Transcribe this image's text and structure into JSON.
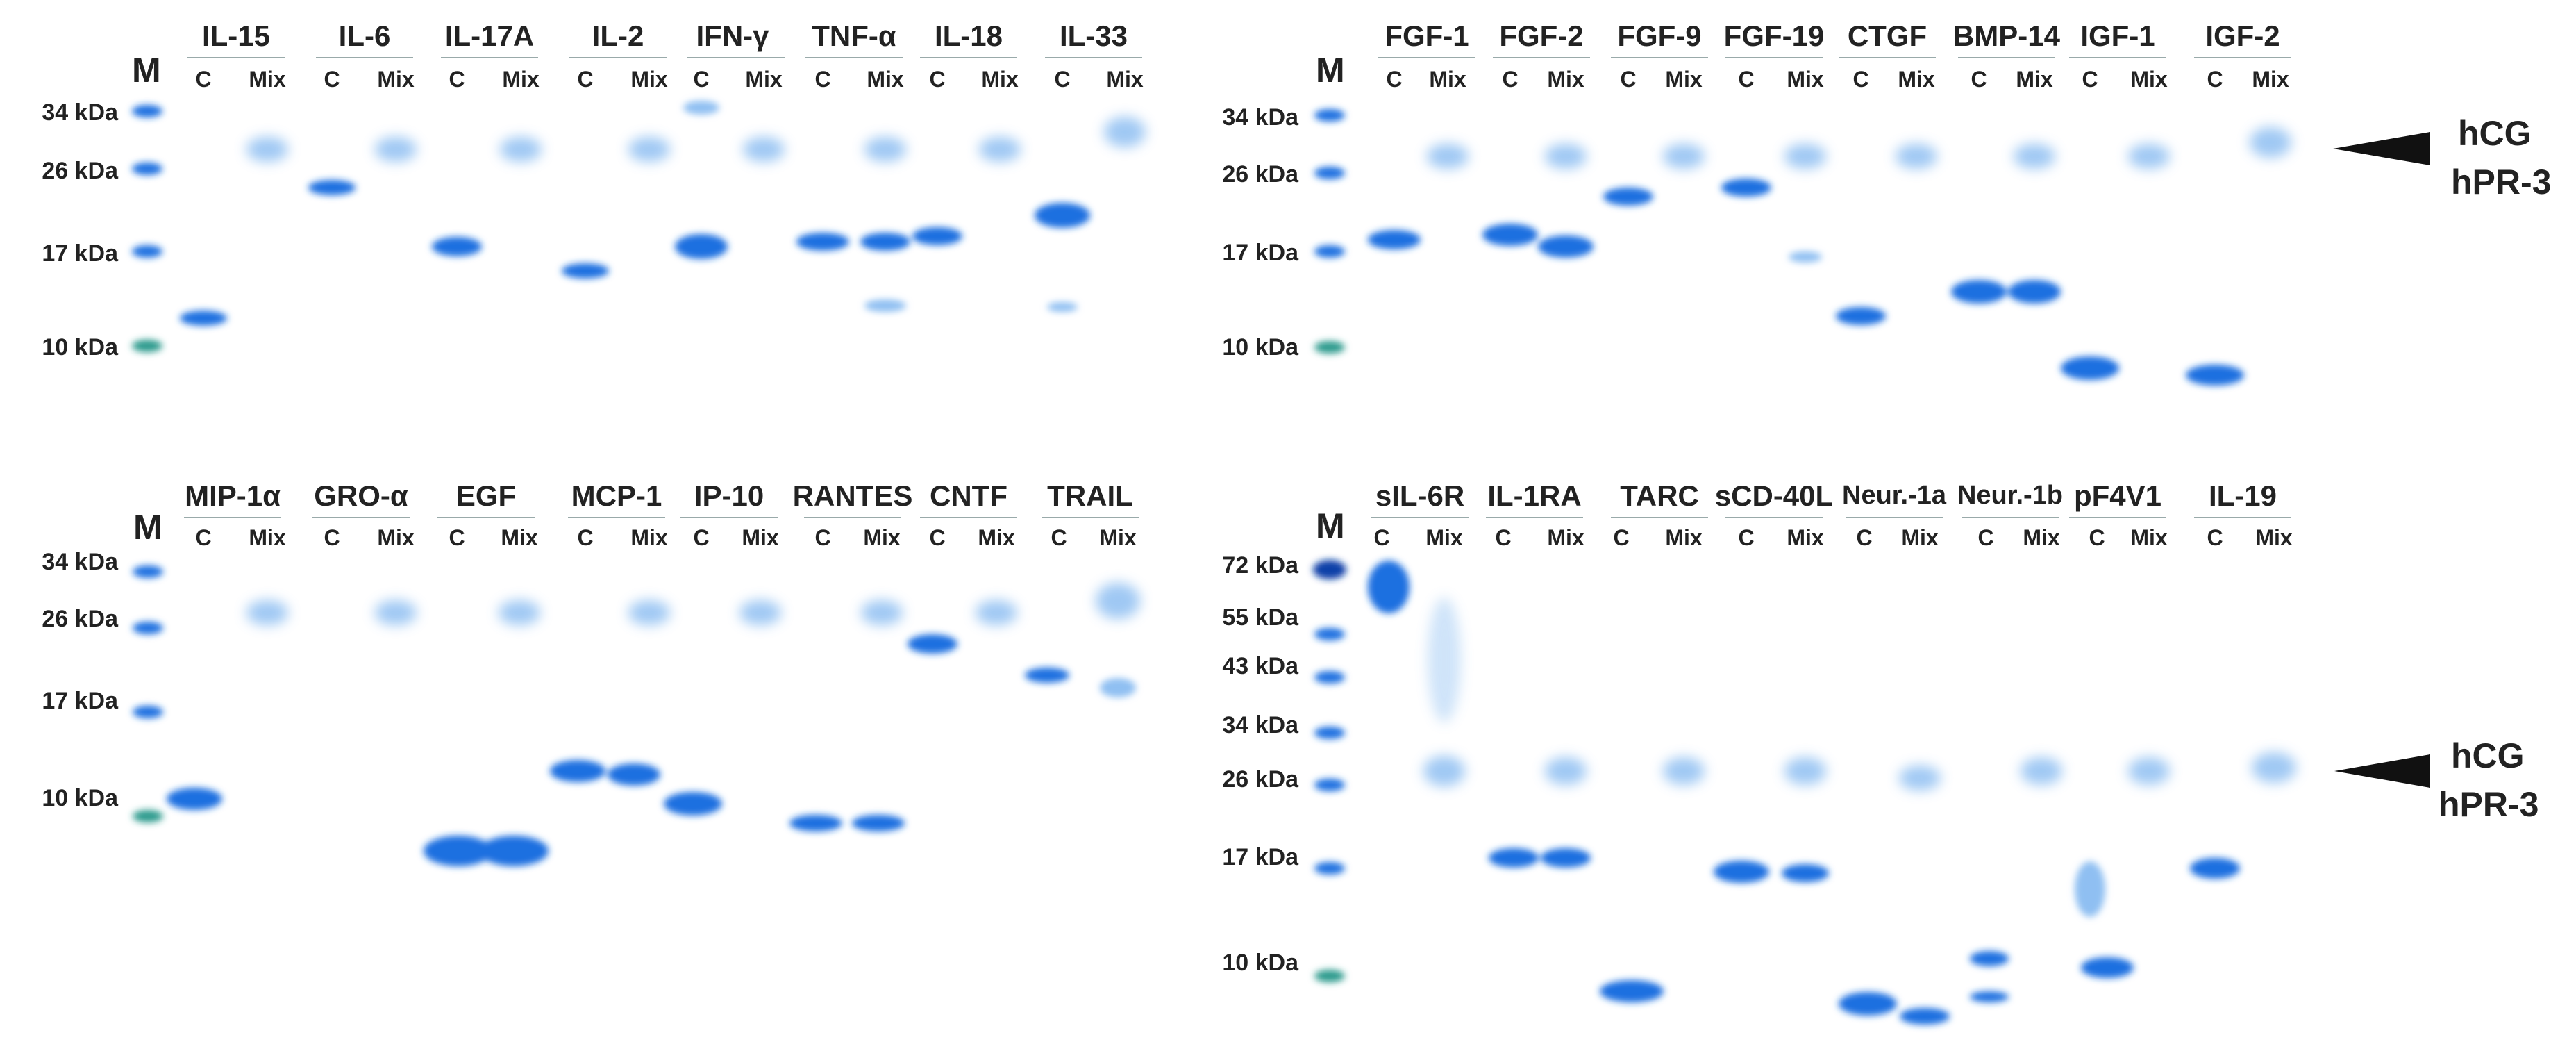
{
  "marker_label": "M",
  "lane_labels": [
    "C",
    "Mix"
  ],
  "arrow_labels": [
    "hCG",
    "hPR-3"
  ],
  "colors": {
    "band_dark": "#0a3fa8",
    "band_mid": "#1e6fe0",
    "band_faint": "#8fbff2",
    "marker_teal": "#2a9a8c",
    "arrow": "#111111"
  },
  "panels": [
    {
      "id": "top-left",
      "markers": [
        "34 kDa",
        "26 kDa",
        "17 kDa",
        "10 kDa"
      ],
      "proteins": [
        "IL-15",
        "IL-6",
        "IL-17A",
        "IL-2",
        "IFN-γ",
        "TNF-α",
        "IL-18",
        "IL-33"
      ]
    },
    {
      "id": "top-right",
      "markers": [
        "34 kDa",
        "26 kDa",
        "17 kDa",
        "10 kDa"
      ],
      "proteins": [
        "FGF-1",
        "FGF-2",
        "FGF-9",
        "FGF-19",
        "CTGF",
        "BMP-14",
        "IGF-1",
        "IGF-2"
      ]
    },
    {
      "id": "bottom-left",
      "markers": [
        "34 kDa",
        "26 kDa",
        "17 kDa",
        "10 kDa"
      ],
      "proteins": [
        "MIP-1α",
        "GRO-α",
        "EGF",
        "MCP-1",
        "IP-10",
        "RANTES",
        "CNTF",
        "TRAIL"
      ]
    },
    {
      "id": "bottom-right",
      "markers": [
        "72 kDa",
        "55 kDa",
        "43 kDa",
        "34 kDa",
        "26 kDa",
        "17 kDa",
        "10 kDa"
      ],
      "proteins": [
        "sIL-6R",
        "IL-1RA",
        "TARC",
        "sCD-40L",
        "Neur.-1a",
        "Neur.-1b",
        "pF4V1",
        "IL-19"
      ]
    }
  ]
}
